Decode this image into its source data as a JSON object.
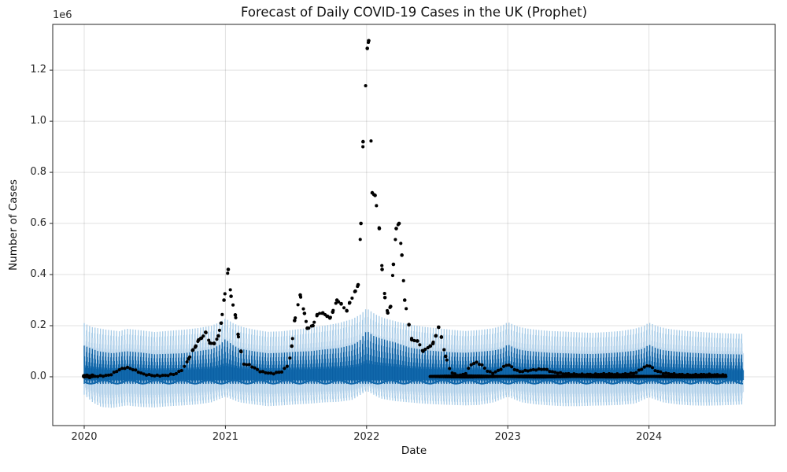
{
  "chart_data": {
    "type": "line+scatter+uncertainty-band",
    "title": "Forecast of Daily COVID-19 Cases in the UK (Prophet)",
    "xlabel": "Date",
    "ylabel": "Number of Cases",
    "y_offset_label": "1e6",
    "x_ticks": [
      2020,
      2021,
      2022,
      2023,
      2024
    ],
    "y_ticks": [
      0.0,
      0.2,
      0.4,
      0.6,
      0.8,
      1.0,
      1.2
    ],
    "y_tick_format_decimals": 1,
    "xlim": [
      2019.777,
      2024.894
    ],
    "ylim": [
      -0.191,
      1.379
    ],
    "unit_scale": 1000000,
    "grid": true,
    "legend": "none",
    "colors": {
      "forecast_line_dark": "#0a5fa3",
      "forecast_line": "#1268ab",
      "uncertainty_stripe": "#a6cbe7",
      "uncertainty_solid": "#c8ddef",
      "actual_points": "#000000",
      "grid_line": "rgba(0,0,0,0.12)",
      "spine": "#262626"
    },
    "forecast_x_range": [
      2020.0,
      2024.67
    ],
    "actual_x_range": [
      2020.0,
      2024.55
    ],
    "zero_reporting_band_x_range": [
      2022.45,
      2024.55
    ],
    "weekly_pattern": [
      1.0,
      0.62,
      0.3,
      0.12,
      0.22,
      0.45,
      0.8
    ],
    "series": {
      "actual_weekly_cases": [
        [
          2020.0,
          0.002
        ],
        [
          2020.1,
          0.002
        ],
        [
          2020.18,
          0.006
        ],
        [
          2020.25,
          0.028
        ],
        [
          2020.3,
          0.037
        ],
        [
          2020.35,
          0.028
        ],
        [
          2020.42,
          0.01
        ],
        [
          2020.5,
          0.004
        ],
        [
          2020.58,
          0.005
        ],
        [
          2020.65,
          0.012
        ],
        [
          2020.7,
          0.03
        ],
        [
          2020.74,
          0.07
        ],
        [
          2020.77,
          0.105
        ],
        [
          2020.79,
          0.12
        ],
        [
          2020.81,
          0.144
        ],
        [
          2020.83,
          0.151
        ],
        [
          2020.86,
          0.174
        ],
        [
          2020.89,
          0.132
        ],
        [
          2020.92,
          0.13
        ],
        [
          2020.95,
          0.16
        ],
        [
          2020.97,
          0.21
        ],
        [
          2020.99,
          0.3
        ],
        [
          2021.02,
          0.42
        ],
        [
          2021.04,
          0.315
        ],
        [
          2021.07,
          0.242
        ],
        [
          2021.09,
          0.166
        ],
        [
          2021.11,
          0.1
        ],
        [
          2021.13,
          0.05
        ],
        [
          2021.17,
          0.046
        ],
        [
          2021.25,
          0.02
        ],
        [
          2021.33,
          0.012
        ],
        [
          2021.4,
          0.02
        ],
        [
          2021.45,
          0.05
        ],
        [
          2021.47,
          0.12
        ],
        [
          2021.49,
          0.22
        ],
        [
          2021.53,
          0.32
        ],
        [
          2021.56,
          0.248
        ],
        [
          2021.58,
          0.19
        ],
        [
          2021.62,
          0.2
        ],
        [
          2021.65,
          0.243
        ],
        [
          2021.69,
          0.25
        ],
        [
          2021.72,
          0.237
        ],
        [
          2021.74,
          0.23
        ],
        [
          2021.76,
          0.253
        ],
        [
          2021.79,
          0.3
        ],
        [
          2021.82,
          0.285
        ],
        [
          2021.86,
          0.258
        ],
        [
          2021.88,
          0.29
        ],
        [
          2021.92,
          0.335
        ],
        [
          2021.94,
          0.36
        ],
        [
          2021.96,
          0.6
        ],
        [
          2021.975,
          0.92
        ],
        [
          2022.005,
          1.285
        ],
        [
          2022.015,
          1.315
        ],
        [
          2022.04,
          0.72
        ],
        [
          2022.06,
          0.71
        ],
        [
          2022.09,
          0.58
        ],
        [
          2022.11,
          0.42
        ],
        [
          2022.13,
          0.31
        ],
        [
          2022.15,
          0.25
        ],
        [
          2022.17,
          0.275
        ],
        [
          2022.19,
          0.44
        ],
        [
          2022.21,
          0.58
        ],
        [
          2022.23,
          0.6
        ],
        [
          2022.25,
          0.476
        ],
        [
          2022.27,
          0.3
        ],
        [
          2022.3,
          0.204
        ],
        [
          2022.32,
          0.145
        ],
        [
          2022.36,
          0.14
        ],
        [
          2022.4,
          0.1
        ],
        [
          2022.45,
          0.12
        ],
        [
          2022.47,
          0.13
        ],
        [
          2022.49,
          0.16
        ],
        [
          2022.51,
          0.194
        ],
        [
          2022.53,
          0.155
        ],
        [
          2022.56,
          0.08
        ],
        [
          2022.58,
          0.04
        ],
        [
          2022.61,
          0.012
        ],
        [
          2022.66,
          0.005
        ],
        [
          2022.7,
          0.012
        ],
        [
          2022.74,
          0.048
        ],
        [
          2022.78,
          0.056
        ],
        [
          2022.82,
          0.044
        ],
        [
          2022.86,
          0.02
        ],
        [
          2022.9,
          0.014
        ],
        [
          2022.95,
          0.03
        ],
        [
          2023.0,
          0.05
        ],
        [
          2023.04,
          0.032
        ],
        [
          2023.08,
          0.02
        ],
        [
          2023.14,
          0.024
        ],
        [
          2023.2,
          0.028
        ],
        [
          2023.26,
          0.03
        ],
        [
          2023.32,
          0.018
        ],
        [
          2023.4,
          0.012
        ],
        [
          2023.5,
          0.009
        ],
        [
          2023.6,
          0.009
        ],
        [
          2023.7,
          0.011
        ],
        [
          2023.8,
          0.009
        ],
        [
          2023.9,
          0.014
        ],
        [
          2023.96,
          0.035
        ],
        [
          2024.0,
          0.046
        ],
        [
          2024.04,
          0.026
        ],
        [
          2024.1,
          0.014
        ],
        [
          2024.2,
          0.009
        ],
        [
          2024.3,
          0.007
        ],
        [
          2024.4,
          0.009
        ],
        [
          2024.5,
          0.007
        ],
        [
          2024.55,
          0.006
        ]
      ],
      "forecast_weekly_max_envelope": [
        [
          2020.0,
          0.122
        ],
        [
          2020.1,
          0.1
        ],
        [
          2020.2,
          0.092
        ],
        [
          2020.3,
          0.1
        ],
        [
          2020.4,
          0.095
        ],
        [
          2020.5,
          0.088
        ],
        [
          2020.6,
          0.09
        ],
        [
          2020.7,
          0.092
        ],
        [
          2020.8,
          0.1
        ],
        [
          2020.9,
          0.108
        ],
        [
          2020.96,
          0.125
        ],
        [
          2021.0,
          0.148
        ],
        [
          2021.05,
          0.125
        ],
        [
          2021.1,
          0.11
        ],
        [
          2021.2,
          0.1
        ],
        [
          2021.3,
          0.092
        ],
        [
          2021.4,
          0.094
        ],
        [
          2021.5,
          0.098
        ],
        [
          2021.6,
          0.1
        ],
        [
          2021.7,
          0.107
        ],
        [
          2021.8,
          0.112
        ],
        [
          2021.9,
          0.125
        ],
        [
          2021.95,
          0.14
        ],
        [
          2022.0,
          0.18
        ],
        [
          2022.05,
          0.16
        ],
        [
          2022.1,
          0.15
        ],
        [
          2022.15,
          0.142
        ],
        [
          2022.2,
          0.135
        ],
        [
          2022.3,
          0.115
        ],
        [
          2022.4,
          0.105
        ],
        [
          2022.5,
          0.1
        ],
        [
          2022.6,
          0.096
        ],
        [
          2022.7,
          0.094
        ],
        [
          2022.8,
          0.098
        ],
        [
          2022.9,
          0.103
        ],
        [
          2022.96,
          0.11
        ],
        [
          2023.0,
          0.127
        ],
        [
          2023.05,
          0.112
        ],
        [
          2023.1,
          0.104
        ],
        [
          2023.2,
          0.098
        ],
        [
          2023.3,
          0.094
        ],
        [
          2023.4,
          0.092
        ],
        [
          2023.5,
          0.09
        ],
        [
          2023.6,
          0.089
        ],
        [
          2023.7,
          0.092
        ],
        [
          2023.8,
          0.096
        ],
        [
          2023.9,
          0.102
        ],
        [
          2023.96,
          0.11
        ],
        [
          2024.0,
          0.126
        ],
        [
          2024.05,
          0.112
        ],
        [
          2024.1,
          0.104
        ],
        [
          2024.2,
          0.098
        ],
        [
          2024.3,
          0.094
        ],
        [
          2024.4,
          0.091
        ],
        [
          2024.5,
          0.089
        ],
        [
          2024.6,
          0.088
        ],
        [
          2024.67,
          0.087
        ]
      ],
      "uncertainty_upper_envelope": [
        [
          2020.0,
          0.21
        ],
        [
          2020.05,
          0.195
        ],
        [
          2020.15,
          0.185
        ],
        [
          2020.25,
          0.178
        ],
        [
          2020.3,
          0.188
        ],
        [
          2020.4,
          0.182
        ],
        [
          2020.5,
          0.175
        ],
        [
          2020.6,
          0.18
        ],
        [
          2020.7,
          0.184
        ],
        [
          2020.8,
          0.19
        ],
        [
          2020.9,
          0.2
        ],
        [
          2020.96,
          0.213
        ],
        [
          2021.0,
          0.228
        ],
        [
          2021.06,
          0.208
        ],
        [
          2021.12,
          0.195
        ],
        [
          2021.2,
          0.185
        ],
        [
          2021.3,
          0.176
        ],
        [
          2021.4,
          0.178
        ],
        [
          2021.5,
          0.185
        ],
        [
          2021.6,
          0.192
        ],
        [
          2021.7,
          0.2
        ],
        [
          2021.8,
          0.21
        ],
        [
          2021.9,
          0.226
        ],
        [
          2021.96,
          0.245
        ],
        [
          2022.0,
          0.268
        ],
        [
          2022.06,
          0.245
        ],
        [
          2022.12,
          0.23
        ],
        [
          2022.2,
          0.218
        ],
        [
          2022.3,
          0.205
        ],
        [
          2022.4,
          0.196
        ],
        [
          2022.5,
          0.19
        ],
        [
          2022.6,
          0.184
        ],
        [
          2022.7,
          0.179
        ],
        [
          2022.8,
          0.183
        ],
        [
          2022.9,
          0.19
        ],
        [
          2022.96,
          0.2
        ],
        [
          2023.0,
          0.214
        ],
        [
          2023.06,
          0.199
        ],
        [
          2023.12,
          0.19
        ],
        [
          2023.2,
          0.184
        ],
        [
          2023.3,
          0.179
        ],
        [
          2023.4,
          0.177
        ],
        [
          2023.5,
          0.174
        ],
        [
          2023.6,
          0.172
        ],
        [
          2023.7,
          0.175
        ],
        [
          2023.8,
          0.179
        ],
        [
          2023.9,
          0.188
        ],
        [
          2023.96,
          0.198
        ],
        [
          2024.0,
          0.212
        ],
        [
          2024.06,
          0.198
        ],
        [
          2024.12,
          0.189
        ],
        [
          2024.2,
          0.183
        ],
        [
          2024.3,
          0.178
        ],
        [
          2024.4,
          0.174
        ],
        [
          2024.5,
          0.171
        ],
        [
          2024.6,
          0.169
        ],
        [
          2024.67,
          0.168
        ]
      ],
      "uncertainty_lower_envelope": [
        [
          2020.0,
          -0.07
        ],
        [
          2020.06,
          -0.1
        ],
        [
          2020.12,
          -0.118
        ],
        [
          2020.2,
          -0.122
        ],
        [
          2020.3,
          -0.112
        ],
        [
          2020.4,
          -0.118
        ],
        [
          2020.5,
          -0.12
        ],
        [
          2020.6,
          -0.115
        ],
        [
          2020.7,
          -0.112
        ],
        [
          2020.8,
          -0.108
        ],
        [
          2020.9,
          -0.1
        ],
        [
          2021.0,
          -0.078
        ],
        [
          2021.1,
          -0.1
        ],
        [
          2021.2,
          -0.108
        ],
        [
          2021.3,
          -0.115
        ],
        [
          2021.4,
          -0.112
        ],
        [
          2021.5,
          -0.108
        ],
        [
          2021.6,
          -0.105
        ],
        [
          2021.7,
          -0.1
        ],
        [
          2021.8,
          -0.098
        ],
        [
          2021.9,
          -0.09
        ],
        [
          2022.0,
          -0.055
        ],
        [
          2022.1,
          -0.085
        ],
        [
          2022.2,
          -0.095
        ],
        [
          2022.3,
          -0.1
        ],
        [
          2022.4,
          -0.105
        ],
        [
          2022.5,
          -0.108
        ],
        [
          2022.6,
          -0.11
        ],
        [
          2022.7,
          -0.112
        ],
        [
          2022.8,
          -0.11
        ],
        [
          2022.9,
          -0.1
        ],
        [
          2023.0,
          -0.078
        ],
        [
          2023.1,
          -0.1
        ],
        [
          2023.2,
          -0.108
        ],
        [
          2023.3,
          -0.112
        ],
        [
          2023.4,
          -0.115
        ],
        [
          2023.5,
          -0.115
        ],
        [
          2023.6,
          -0.113
        ],
        [
          2023.7,
          -0.112
        ],
        [
          2023.8,
          -0.11
        ],
        [
          2023.9,
          -0.105
        ],
        [
          2024.0,
          -0.08
        ],
        [
          2024.1,
          -0.1
        ],
        [
          2024.2,
          -0.108
        ],
        [
          2024.3,
          -0.112
        ],
        [
          2024.4,
          -0.113
        ],
        [
          2024.5,
          -0.112
        ],
        [
          2024.6,
          -0.11
        ],
        [
          2024.67,
          -0.108
        ]
      ]
    }
  }
}
